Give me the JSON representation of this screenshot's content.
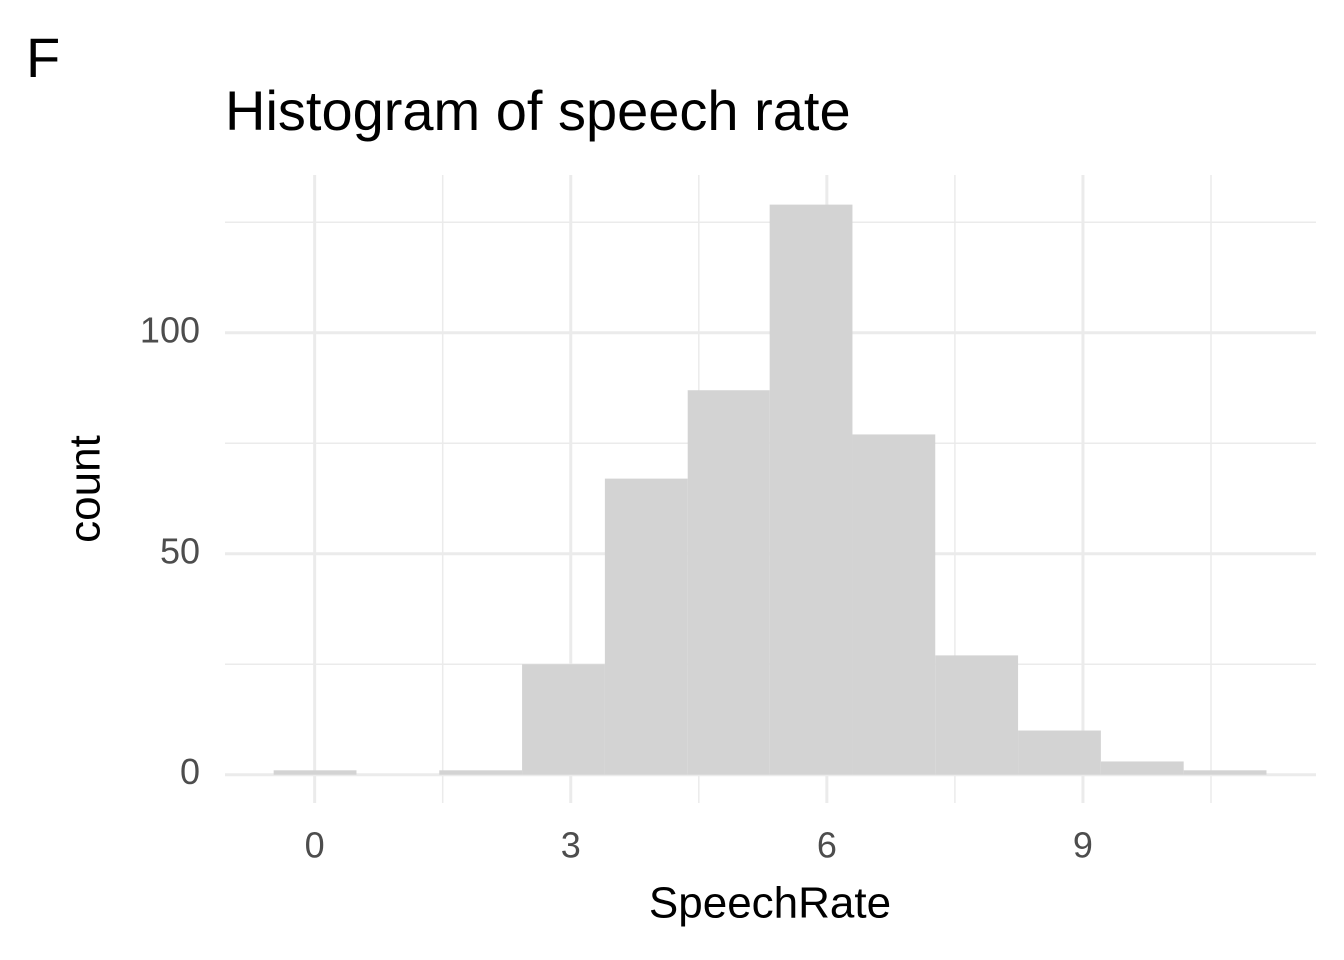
{
  "chart_data": {
    "type": "histogram",
    "tag": "F",
    "title": "Histogram of speech rate",
    "x_label": "SpeechRate",
    "y_label": "count",
    "bins": [
      -0.48,
      0.49,
      1.46,
      2.43,
      3.4,
      4.37,
      5.33,
      6.3,
      7.27,
      8.24,
      9.21,
      10.18,
      11.15
    ],
    "values": [
      1,
      0,
      1,
      25,
      67,
      87,
      129,
      77,
      27,
      10,
      3,
      1
    ],
    "color": "#d3d3d3",
    "xlim": [
      -1.05,
      11.73
    ],
    "ylim": [
      -6.4,
      135.7
    ],
    "xticks": [
      0,
      3,
      6,
      9
    ],
    "yticks": [
      0,
      50,
      100
    ],
    "x_minor_ticks": [
      1.5,
      4.5,
      7.5,
      10.5
    ],
    "y_minor_ticks": [
      25,
      75,
      125
    ],
    "grid": true
  }
}
